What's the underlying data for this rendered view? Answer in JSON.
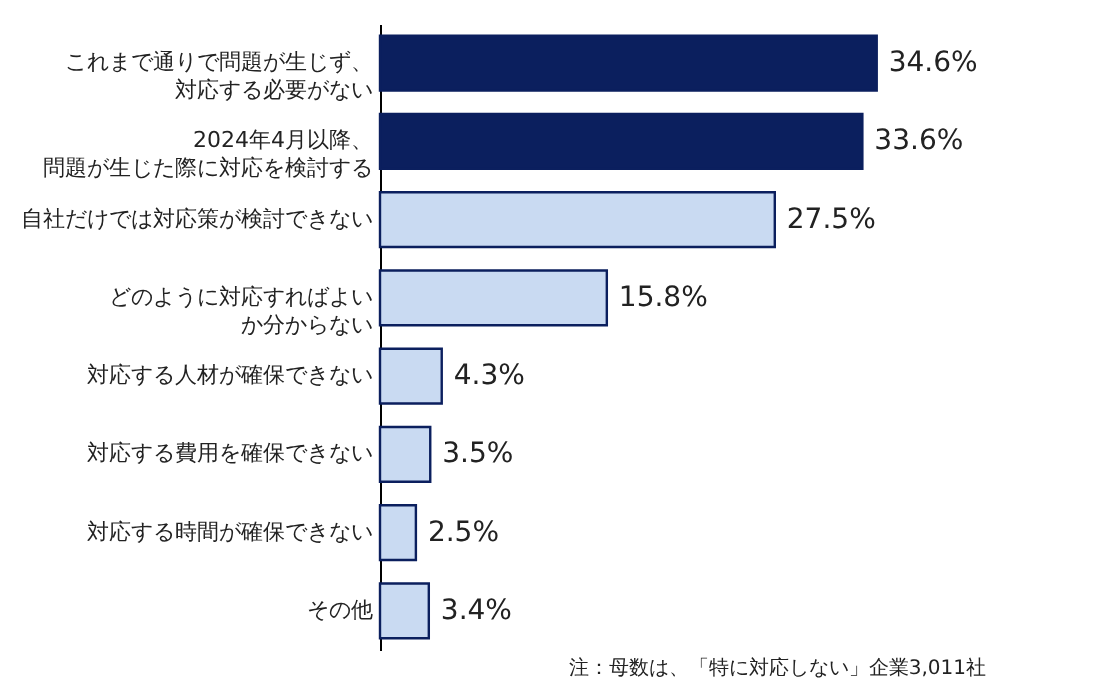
{
  "chart_data": {
    "type": "bar",
    "orientation": "horizontal",
    "categories": [
      "これまで通りで問題が生じず、対応する必要がない",
      "2024年4月以降、問題が生じた際に対応を検討する",
      "自社だけでは対応策が検討できない",
      "どのように対応すればよいか分からない",
      "対応する人材が確保できない",
      "対応する費用を確保できない",
      "対応する時間が確保できない",
      "その他"
    ],
    "values": [
      34.6,
      33.6,
      27.5,
      15.8,
      4.3,
      3.5,
      2.5,
      3.4
    ],
    "colors": [
      "#0b1f5e",
      "#0b1f5e",
      "#c9daf2",
      "#c9daf2",
      "#c9daf2",
      "#c9daf2",
      "#c9daf2",
      "#c9daf2"
    ],
    "value_labels": [
      "34.6%",
      "33.6%",
      "27.5%",
      "15.8%",
      "4.3%",
      "3.5%",
      "2.5%",
      "3.4%"
    ],
    "annotations": [
      "注：母数は、「特に対応しない」企業3,011社"
    ]
  }
}
